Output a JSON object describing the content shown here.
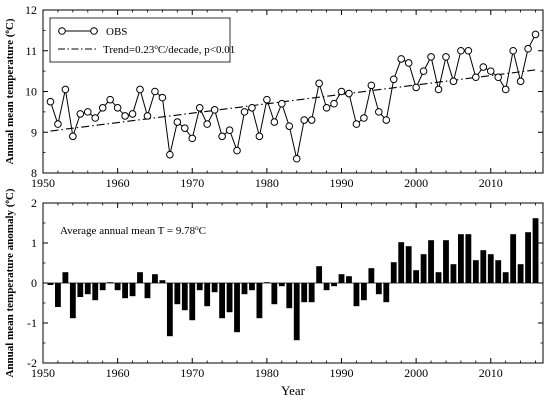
{
  "chart_data": [
    {
      "type": "line",
      "xlabel": "",
      "ylabel": "Annual mean temperature (°C)",
      "ylabel_parts": [
        "Annual mean temperature (",
        "o",
        "C)"
      ],
      "xlim": [
        1950,
        2017
      ],
      "ylim": [
        8,
        12
      ],
      "x_ticks": [
        1950,
        1960,
        1970,
        1980,
        1990,
        2000,
        2010
      ],
      "y_ticks": [
        8,
        9,
        10,
        11,
        12
      ],
      "grid": false,
      "legend_placement": "top-left",
      "legend": {
        "obs_label": "OBS",
        "trend_label": "Trend=0.23°C/decade, p<0.01",
        "trend_parts": [
          "Trend=0.23",
          "o",
          "C/decade, p<0.01"
        ]
      },
      "x": [
        1951,
        1952,
        1953,
        1954,
        1955,
        1956,
        1957,
        1958,
        1959,
        1960,
        1961,
        1962,
        1963,
        1964,
        1965,
        1966,
        1967,
        1968,
        1969,
        1970,
        1971,
        1972,
        1973,
        1974,
        1975,
        1976,
        1977,
        1978,
        1979,
        1980,
        1981,
        1982,
        1983,
        1984,
        1985,
        1986,
        1987,
        1988,
        1989,
        1990,
        1991,
        1992,
        1993,
        1994,
        1995,
        1996,
        1997,
        1998,
        1999,
        2000,
        2001,
        2002,
        2003,
        2004,
        2005,
        2006,
        2007,
        2008,
        2009,
        2010,
        2011,
        2012,
        2013,
        2014,
        2015,
        2016
      ],
      "series": [
        {
          "name": "OBS",
          "values": [
            9.75,
            9.2,
            10.05,
            8.9,
            9.45,
            9.5,
            9.35,
            9.6,
            9.8,
            9.6,
            9.4,
            9.45,
            10.05,
            9.4,
            10.0,
            9.85,
            8.45,
            9.25,
            9.1,
            8.85,
            9.6,
            9.2,
            9.55,
            8.9,
            9.05,
            8.55,
            9.5,
            9.6,
            8.9,
            9.8,
            9.25,
            9.7,
            9.15,
            8.35,
            9.3,
            9.3,
            10.2,
            9.6,
            9.7,
            10.0,
            9.95,
            9.2,
            9.35,
            10.15,
            9.5,
            9.3,
            10.3,
            10.8,
            10.7,
            10.1,
            10.5,
            10.85,
            10.05,
            10.85,
            10.25,
            11.0,
            11.0,
            10.35,
            10.6,
            10.5,
            10.35,
            10.05,
            11.0,
            10.25,
            11.05,
            11.4
          ]
        },
        {
          "name": "Trend",
          "x": [
            1951,
            2016
          ],
          "values": [
            9.03,
            10.53
          ]
        }
      ],
      "colors": {
        "line": "#000000",
        "marker_fill": "#ffffff"
      }
    },
    {
      "type": "bar",
      "xlabel": "Year",
      "ylabel": "Annual mean temperature anomaly (°C)",
      "ylabel_parts": [
        "Annual mean temperature anomaly (",
        "o",
        "C)"
      ],
      "annotation": "Average annual mean T = 9.78°C",
      "annotation_parts": [
        "Average annual mean T = 9.78",
        "o",
        "C"
      ],
      "xlim": [
        1950,
        2017
      ],
      "ylim": [
        -2,
        2
      ],
      "x_ticks": [
        1950,
        1960,
        1970,
        1980,
        1990,
        2000,
        2010
      ],
      "y_ticks": [
        -2,
        -1,
        0,
        1,
        2
      ],
      "grid": false,
      "x": [
        1951,
        1952,
        1953,
        1954,
        1955,
        1956,
        1957,
        1958,
        1959,
        1960,
        1961,
        1962,
        1963,
        1964,
        1965,
        1966,
        1967,
        1968,
        1969,
        1970,
        1971,
        1972,
        1973,
        1974,
        1975,
        1976,
        1977,
        1978,
        1979,
        1980,
        1981,
        1982,
        1983,
        1984,
        1985,
        1986,
        1987,
        1988,
        1989,
        1990,
        1991,
        1992,
        1993,
        1994,
        1995,
        1996,
        1997,
        1998,
        1999,
        2000,
        2001,
        2002,
        2003,
        2004,
        2005,
        2006,
        2007,
        2008,
        2009,
        2010,
        2011,
        2012,
        2013,
        2014,
        2015,
        2016
      ],
      "values": [
        -0.05,
        -0.6,
        0.27,
        -0.88,
        -0.35,
        -0.28,
        -0.43,
        -0.18,
        0.02,
        -0.18,
        -0.38,
        -0.33,
        0.27,
        -0.38,
        0.22,
        0.07,
        -1.33,
        -0.53,
        -0.68,
        -0.93,
        -0.18,
        -0.58,
        -0.23,
        -0.88,
        -0.73,
        -1.23,
        -0.28,
        -0.18,
        -0.88,
        0.02,
        -0.53,
        -0.08,
        -0.63,
        -1.43,
        -0.48,
        -0.48,
        0.42,
        -0.18,
        -0.08,
        0.22,
        0.17,
        -0.58,
        -0.43,
        0.37,
        -0.28,
        -0.48,
        0.52,
        1.02,
        0.92,
        0.32,
        0.72,
        1.07,
        0.27,
        1.07,
        0.47,
        1.22,
        1.22,
        0.57,
        0.82,
        0.72,
        0.57,
        0.27,
        1.22,
        0.47,
        1.27,
        1.62
      ],
      "colors": {
        "bar": "#000000"
      }
    }
  ]
}
